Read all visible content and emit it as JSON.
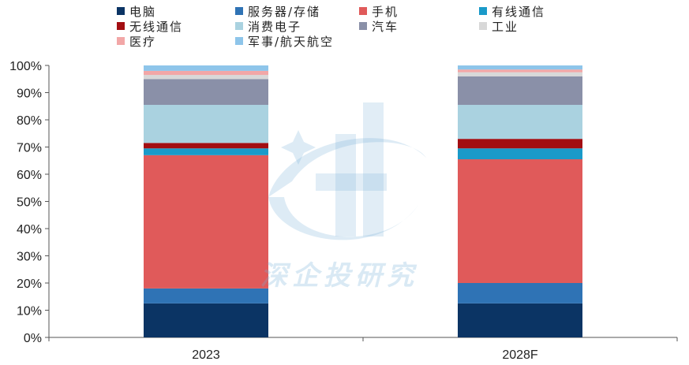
{
  "chart_data": {
    "type": "bar",
    "stacked": true,
    "categories": [
      "2023",
      "2028F"
    ],
    "series": [
      {
        "name": "电脑",
        "color": "#0b3464",
        "values": [
          12.5,
          12.5
        ]
      },
      {
        "name": "服务器/存储",
        "color": "#2f73b5",
        "values": [
          5.5,
          7.5
        ]
      },
      {
        "name": "手机",
        "color": "#e05a5a",
        "values": [
          49.0,
          45.5
        ]
      },
      {
        "name": "有线通信",
        "color": "#1a9ac9",
        "values": [
          2.5,
          4.0
        ]
      },
      {
        "name": "无线通信",
        "color": "#a30e12",
        "values": [
          2.0,
          3.5
        ]
      },
      {
        "name": "消费电子",
        "color": "#aad2e0",
        "values": [
          14.0,
          12.5
        ]
      },
      {
        "name": "汽车",
        "color": "#8a90a8",
        "values": [
          9.5,
          10.5
        ]
      },
      {
        "name": "工业",
        "color": "#d8d8d8",
        "values": [
          1.5,
          1.5
        ]
      },
      {
        "name": "医疗",
        "color": "#f2a7a7",
        "values": [
          1.5,
          1.0
        ]
      },
      {
        "name": "军事/航天航空",
        "color": "#8ec5ea",
        "values": [
          2.0,
          1.5
        ]
      }
    ],
    "ylim": [
      0,
      100
    ],
    "yticks": [
      "0%",
      "10%",
      "20%",
      "30%",
      "40%",
      "50%",
      "60%",
      "70%",
      "80%",
      "90%",
      "100%"
    ],
    "legend_position": "top",
    "grid": false
  },
  "watermark": {
    "text": "深企投研究"
  }
}
